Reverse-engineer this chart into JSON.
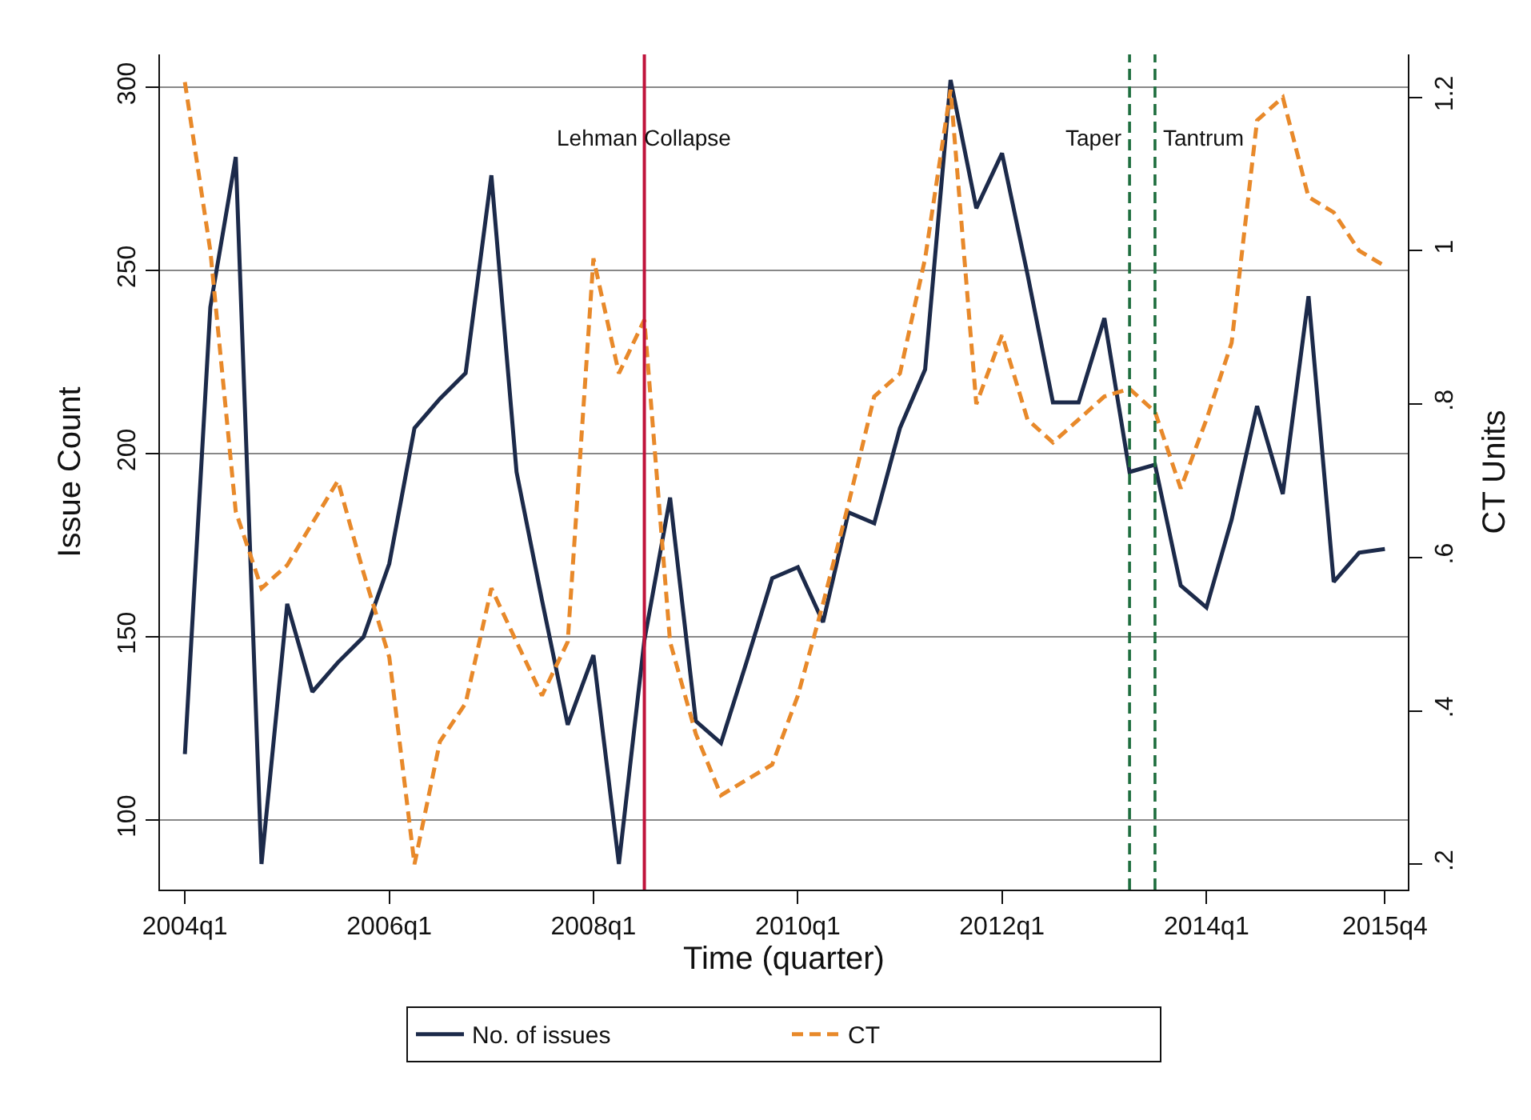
{
  "chart_data": {
    "type": "line",
    "xlabel": "Time (quarter)",
    "ylabel": "Issue Count",
    "y2label": "CT Units",
    "x": [
      "2004-01",
      "2004-04",
      "2004-07",
      "2004-10",
      "2005-01",
      "2005-04",
      "2005-07",
      "2005-10",
      "2006-01",
      "2006-04",
      "2006-07",
      "2006-10",
      "2007-01",
      "2007-04",
      "2007-07",
      "2007-10",
      "2008-01",
      "2008-04",
      "2008-07",
      "2008-10",
      "2009-01",
      "2009-04",
      "2009-07",
      "2009-10",
      "2010-01",
      "2010-04",
      "2010-07",
      "2010-10",
      "2011-01",
      "2011-04",
      "2011-07",
      "2011-10",
      "2012-01",
      "2012-04",
      "2012-07",
      "2012-10",
      "2013-01",
      "2013-04",
      "2013-07",
      "2013-10",
      "2014-01",
      "2014-04",
      "2014-07",
      "2014-10",
      "2015-01",
      "2015-04",
      "2015-07",
      "2015-10"
    ],
    "series": [
      {
        "name": "No. of issues",
        "color": "#1c2a4a",
        "line_style": "solid",
        "values": [
          118,
          240,
          281,
          88,
          159,
          135,
          143,
          150,
          170,
          207,
          215,
          222,
          276,
          195,
          160,
          126,
          145,
          88,
          149,
          188,
          127,
          121,
          143,
          166,
          169,
          154,
          184,
          181,
          207,
          223,
          302,
          267,
          282,
          249,
          214,
          214,
          237,
          195,
          197,
          164,
          158,
          182,
          213,
          189,
          243,
          165,
          173,
          174
        ]
      },
      {
        "name": "CT",
        "color": "#e8892a",
        "line_style": "dashed",
        "axis": "y2",
        "values": [
          1.22,
          1.0,
          0.66,
          0.56,
          0.59,
          0.645,
          0.7,
          0.58,
          0.47,
          0.2,
          0.36,
          0.41,
          0.56,
          0.49,
          0.42,
          0.49,
          0.99,
          0.84,
          0.91,
          0.49,
          0.37,
          0.29,
          0.31,
          0.33,
          0.42,
          0.54,
          0.67,
          0.81,
          0.84,
          0.99,
          1.21,
          0.8,
          0.89,
          0.78,
          0.75,
          0.78,
          0.81,
          0.82,
          0.79,
          0.69,
          0.78,
          0.88,
          1.17,
          1.2,
          1.07,
          1.05,
          1.0,
          0.98
        ]
      }
    ],
    "xlim": [
      "2003-10-04",
      "2015-12-22"
    ],
    "xticks": [
      {
        "value": "2004-01",
        "label": "2004q1"
      },
      {
        "value": "2006-01",
        "label": "2006q1"
      },
      {
        "value": "2008-01",
        "label": "2008q1"
      },
      {
        "value": "2010-01",
        "label": "2010q1"
      },
      {
        "value": "2012-01",
        "label": "2012q1"
      },
      {
        "value": "2014-01",
        "label": "2014q1"
      },
      {
        "value": "2015-10",
        "label": "2015q4"
      }
    ],
    "ylim": [
      81,
      309
    ],
    "yticks": [
      100,
      150,
      200,
      250,
      300
    ],
    "y2lim": [
      0.167,
      1.256
    ],
    "y2ticks": [
      {
        "value": 0.2,
        "label": ".2"
      },
      {
        "value": 0.4,
        "label": ".4"
      },
      {
        "value": 0.6,
        "label": ".6"
      },
      {
        "value": 0.8,
        "label": ".8"
      },
      1,
      1.2
    ],
    "ref_lines": [
      {
        "axis": "x",
        "value": "2008-07",
        "label": "Lehman Collapse",
        "color": "#c0143c",
        "line_style": "solid"
      },
      {
        "axis": "x",
        "value": "2013-04",
        "label": "Taper",
        "color": "#1e6e3e",
        "line_style": "dashed"
      },
      {
        "axis": "x",
        "value": "2013-07",
        "label": "Tantrum",
        "color": "#1e6e3e",
        "line_style": "dashed"
      }
    ],
    "grid": "y",
    "legend": "bottom",
    "marker": "none"
  }
}
